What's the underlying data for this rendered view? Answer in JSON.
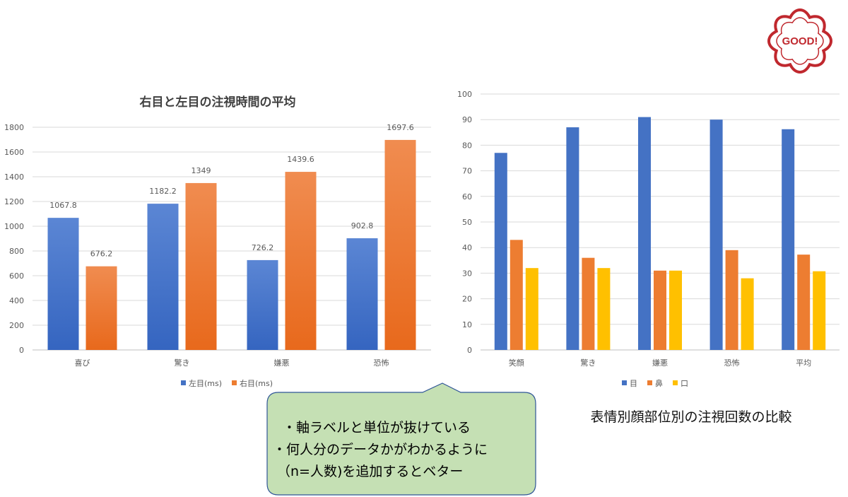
{
  "chart_data": [
    {
      "type": "bar",
      "title": "右目と左目の注視時間の平均",
      "categories": [
        "喜び",
        "驚き",
        "嫌悪",
        "恐怖"
      ],
      "series": [
        {
          "name": "左目(ms)",
          "values": [
            1067.8,
            1182.2,
            726.2,
            902.8
          ],
          "labels": [
            "1067.8",
            "1182.2",
            "726.2",
            "902.8"
          ],
          "color": "#4472C4"
        },
        {
          "name": "右目(ms)",
          "values": [
            676.2,
            1349,
            1439.6,
            1697.6
          ],
          "labels": [
            "676.2",
            "1349",
            "1439.6",
            "1697.6"
          ],
          "color": "#ED7D31"
        }
      ],
      "ylim": [
        0,
        1800
      ],
      "yticks": [
        "0",
        "200",
        "400",
        "600",
        "800",
        "1000",
        "1200",
        "1400",
        "1600",
        "1800"
      ],
      "grid": true,
      "legend": "bottom"
    },
    {
      "type": "bar",
      "categories": [
        "笑顔",
        "驚き",
        "嫌悪",
        "恐怖",
        "平均"
      ],
      "series": [
        {
          "name": "目",
          "values": [
            77,
            87,
            91,
            90,
            86.25
          ],
          "color": "#4472C4"
        },
        {
          "name": "鼻",
          "values": [
            43,
            36,
            31,
            39,
            37.25
          ],
          "color": "#ED7D31"
        },
        {
          "name": "口",
          "values": [
            32,
            32,
            31,
            28,
            30.75
          ],
          "color": "#FFC000"
        }
      ],
      "ylim": [
        0,
        100
      ],
      "yticks": [
        "0",
        "10",
        "20",
        "30",
        "40",
        "50",
        "60",
        "70",
        "80",
        "90",
        "100"
      ],
      "grid": true,
      "legend": "bottom"
    }
  ],
  "caption": "表情別顔部位別の注視回数の比較",
  "note": {
    "lines": [
      "・軸ラベルと単位が抜けている",
      "・何人分のデータかがわかるように",
      "（n=人数)を追加するとベター"
    ],
    "fill": "#C5E0B4",
    "border": "#2F5597"
  },
  "stamp": {
    "text": "GOOD!",
    "color": "#C0282E"
  }
}
